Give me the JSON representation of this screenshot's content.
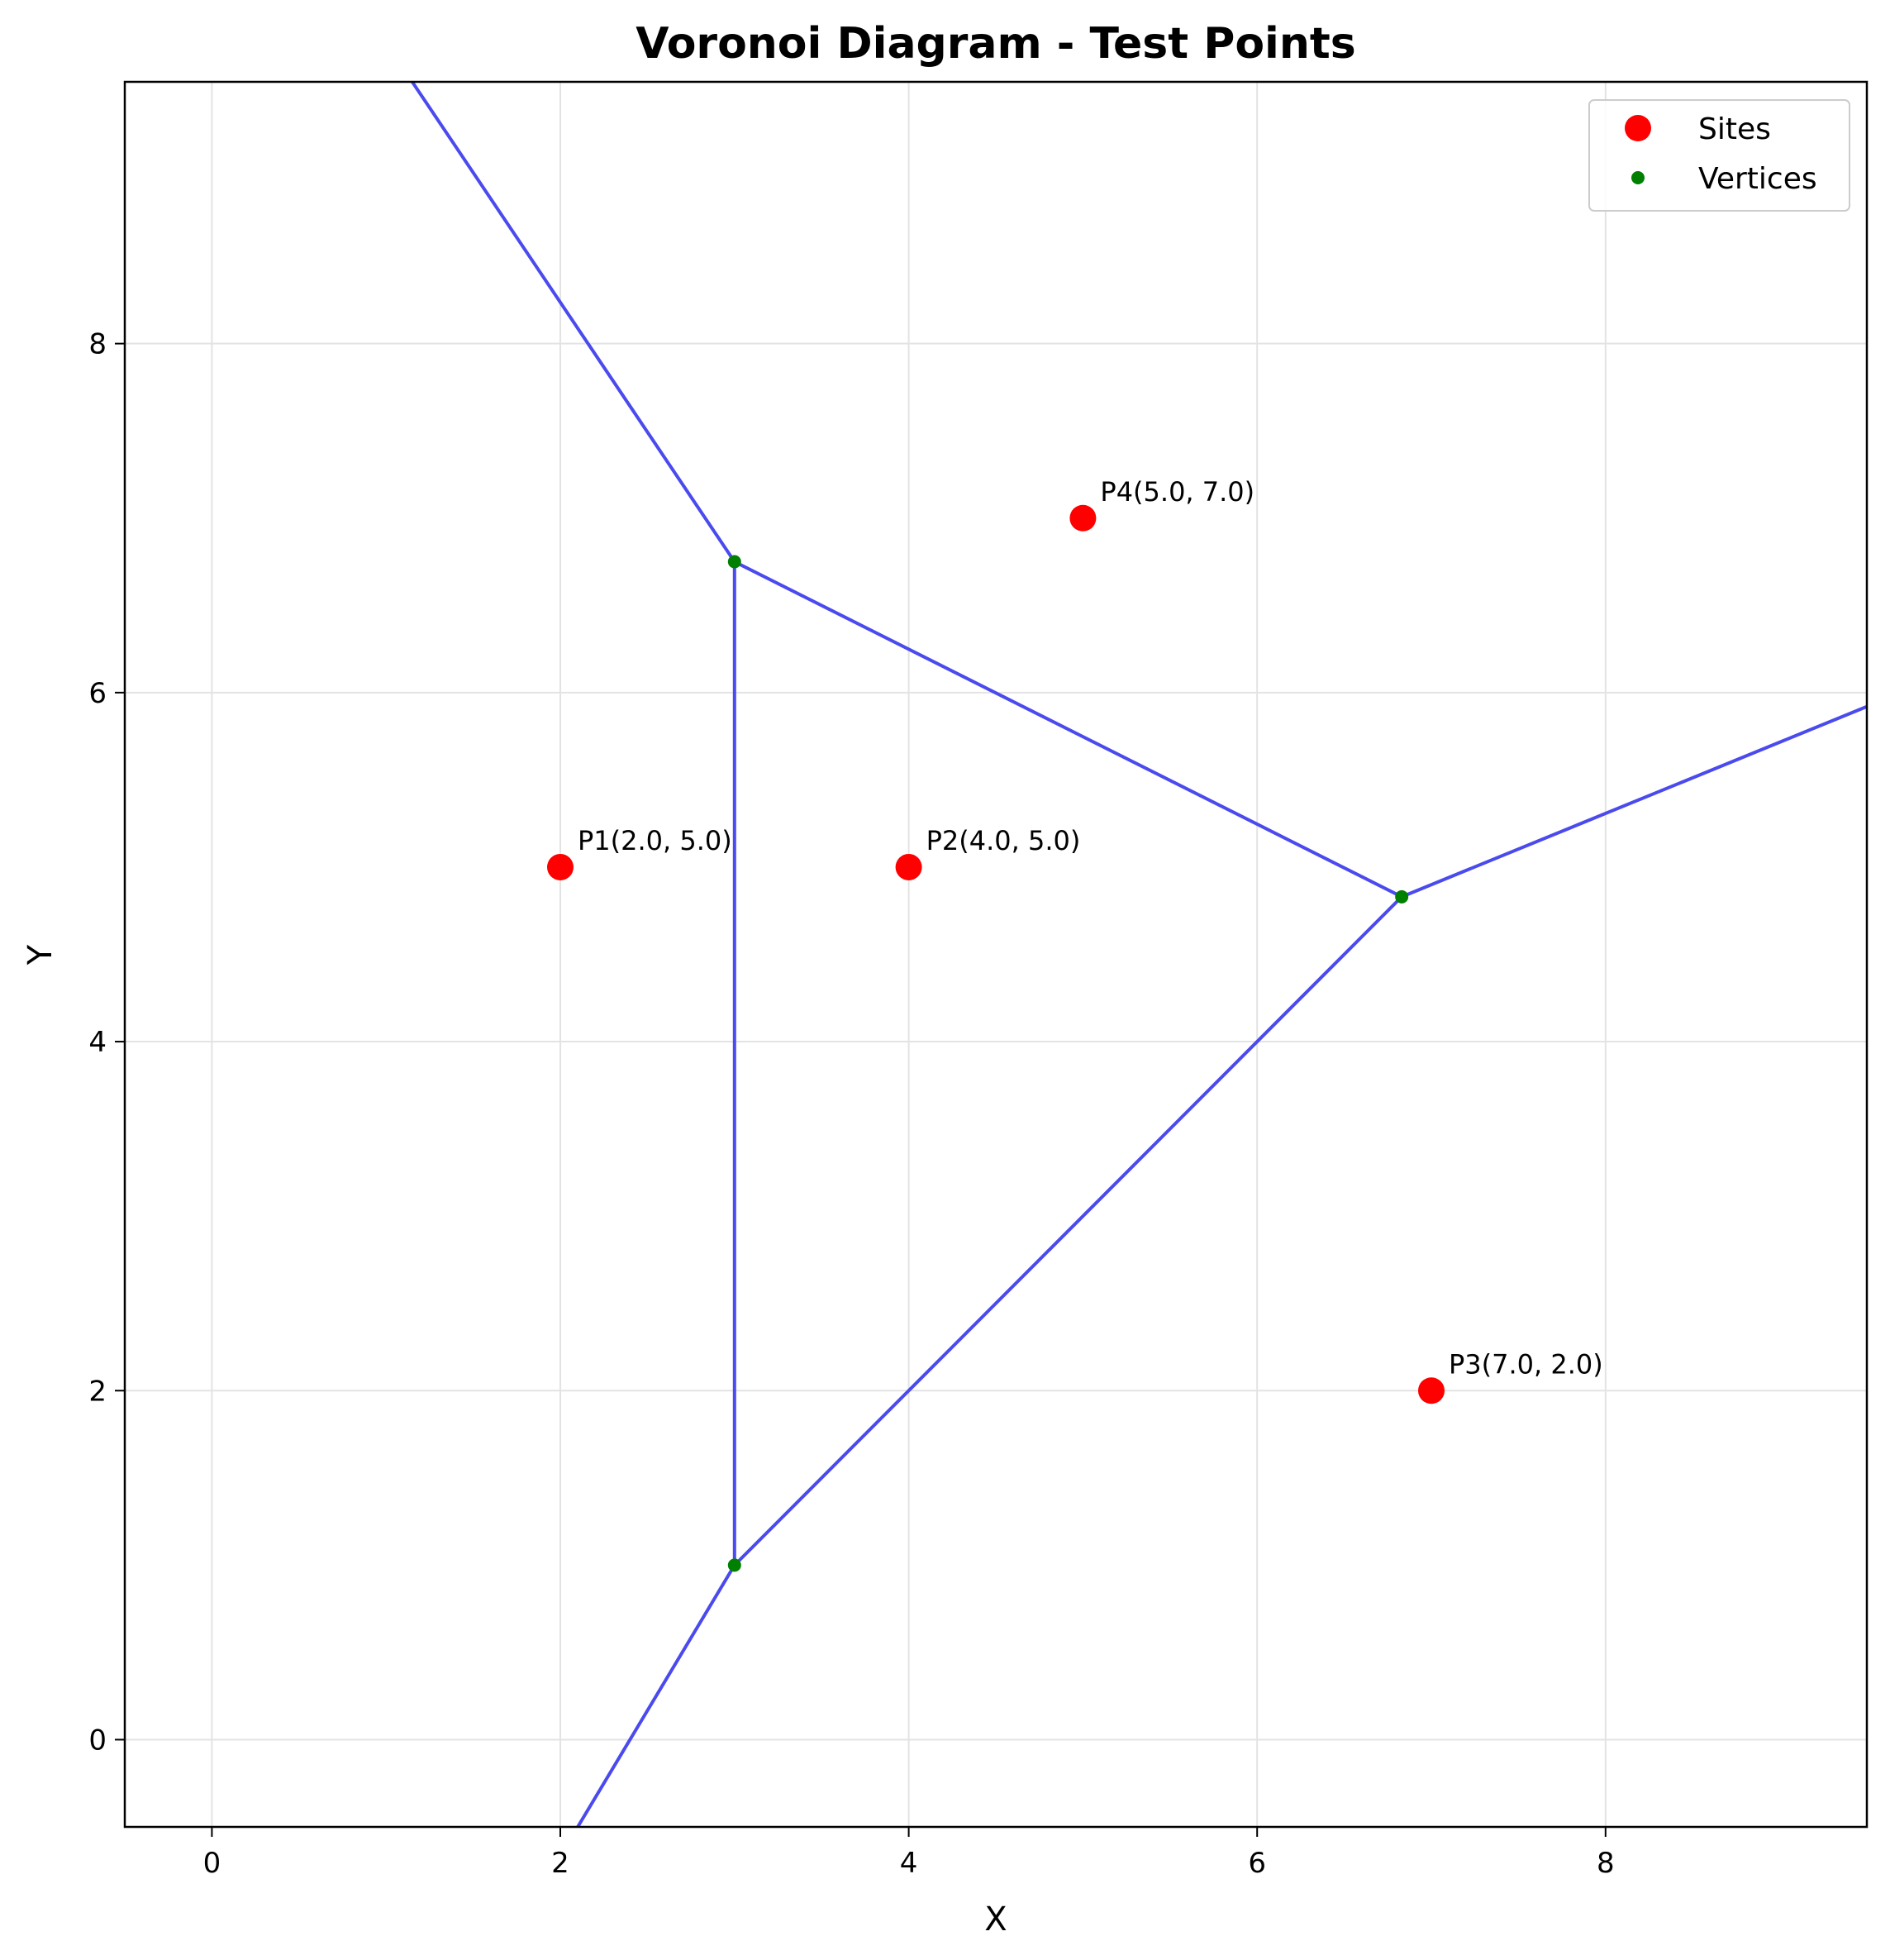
{
  "chart_data": {
    "type": "scatter",
    "title": "Voronoi Diagram - Test Points",
    "xlabel": "X",
    "ylabel": "Y",
    "xlim": [
      -0.5,
      9.5
    ],
    "ylim": [
      -0.5,
      9.5
    ],
    "xticks": [
      0,
      2,
      4,
      6,
      8
    ],
    "yticks": [
      0,
      2,
      4,
      6,
      8
    ],
    "xtick_labels": [
      "0",
      "2",
      "4",
      "6",
      "8"
    ],
    "ytick_labels": [
      "0",
      "2",
      "4",
      "6",
      "8"
    ],
    "grid": true,
    "legend_position": "top-right",
    "colors": {
      "sites": "#ff0000",
      "vertices": "#008000",
      "edges": "#4a4aee",
      "grid": "#e3e3e3"
    },
    "series": [
      {
        "name": "Sites",
        "points": [
          {
            "x": 2.0,
            "y": 5.0,
            "label": "P1(2.0, 5.0)"
          },
          {
            "x": 4.0,
            "y": 5.0,
            "label": "P2(4.0, 5.0)"
          },
          {
            "x": 7.0,
            "y": 2.0,
            "label": "P3(7.0, 2.0)"
          },
          {
            "x": 5.0,
            "y": 7.0,
            "label": "P4(5.0, 7.0)"
          }
        ]
      },
      {
        "name": "Vertices",
        "points": [
          {
            "x": 3.0,
            "y": 6.75
          },
          {
            "x": 3.0,
            "y": 1.0
          },
          {
            "x": 6.83,
            "y": 4.83
          }
        ]
      }
    ],
    "edges": [
      {
        "from": [
          3.0,
          6.75
        ],
        "to": [
          1.15,
          9.5
        ]
      },
      {
        "from": [
          3.0,
          6.75
        ],
        "to": [
          3.0,
          1.0
        ]
      },
      {
        "from": [
          3.0,
          6.75
        ],
        "to": [
          6.83,
          4.83
        ]
      },
      {
        "from": [
          3.0,
          1.0
        ],
        "to": [
          6.83,
          4.83
        ]
      },
      {
        "from": [
          3.0,
          1.0
        ],
        "to": [
          2.1,
          -0.5
        ]
      },
      {
        "from": [
          6.83,
          4.83
        ],
        "to": [
          9.5,
          5.92
        ]
      }
    ]
  }
}
